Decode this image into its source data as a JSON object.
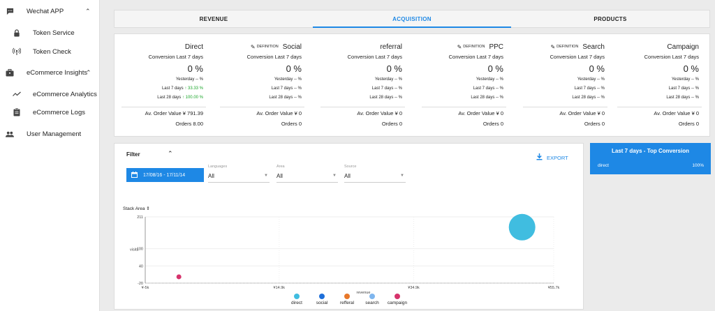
{
  "sidebar": {
    "items": [
      {
        "label": "Wechat APP",
        "icon": "chat-icon",
        "chevron": "⌃"
      },
      {
        "label": "Token Service",
        "icon": "lock-icon"
      },
      {
        "label": "Token Check",
        "icon": "antenna-icon"
      },
      {
        "label": "eCommerce Insights",
        "icon": "briefcase-icon",
        "chevron": "⌃"
      },
      {
        "label": "eCommerce Analytics",
        "icon": "trend-icon"
      },
      {
        "label": "eCommerce Logs",
        "icon": "clipboard-icon"
      },
      {
        "label": "User Management",
        "icon": "people-icon"
      }
    ]
  },
  "tabs": [
    {
      "label": "REVENUE",
      "active": false
    },
    {
      "label": "ACQUISITION",
      "active": true
    },
    {
      "label": "PRODUCTS",
      "active": false
    }
  ],
  "kpis": [
    {
      "name": "Direct",
      "definition": "",
      "conversion_label": "Conversion Last 7 days",
      "value": "0 %",
      "yesterday": "Yesterday -- %",
      "last7_text": "Last 7 days ",
      "last7_value": "↑ 33.33 %",
      "last28_text": "Last 28 days ",
      "last28_value": "↑ 100.00 %",
      "aov": "Av. Order Value ¥ 791.39",
      "orders": "Orders 8.00"
    },
    {
      "name": "Social",
      "definition": "DEFINITION",
      "conversion_label": "Conversion Last 7 days",
      "value": "0 %",
      "yesterday": "Yesterday -- %",
      "last7_text": "Last 7 days -- %",
      "last7_value": "",
      "last28_text": "Last 28 days -- %",
      "last28_value": "",
      "aov": "Av. Order Value ¥ 0",
      "orders": "Orders 0"
    },
    {
      "name": "referral",
      "definition": "",
      "conversion_label": "Conversion Last 7 days",
      "value": "0 %",
      "yesterday": "Yesterday -- %",
      "last7_text": "Last 7 days -- %",
      "last7_value": "",
      "last28_text": "Last 28 days -- %",
      "last28_value": "",
      "aov": "Av. Order Value ¥ 0",
      "orders": "Orders 0"
    },
    {
      "name": "PPC",
      "definition": "DEFINITION",
      "conversion_label": "Conversion Last 7 days",
      "value": "0 %",
      "yesterday": "Yesterday -- %",
      "last7_text": "Last 7 days -- %",
      "last7_value": "",
      "last28_text": "Last 28 days -- %",
      "last28_value": "",
      "aov": "Av. Order Value ¥ 0",
      "orders": "Orders 0"
    },
    {
      "name": "Search",
      "definition": "DEFINITION",
      "conversion_label": "Conversion Last 7 days",
      "value": "0 %",
      "yesterday": "Yesterday -- %",
      "last7_text": "Last 7 days -- %",
      "last7_value": "",
      "last28_text": "Last 28 days -- %",
      "last28_value": "",
      "aov": "Av. Order Value ¥ 0",
      "orders": "Orders 0"
    },
    {
      "name": "Campaign",
      "definition": "",
      "conversion_label": "Conversion Last 7 days",
      "value": "0 %",
      "yesterday": "Yesterday -- %",
      "last7_text": "Last 7 days -- %",
      "last7_value": "",
      "last28_text": "Last 28 days -- %",
      "last28_value": "",
      "aov": "Av. Order Value ¥ 0",
      "orders": "Orders 0"
    }
  ],
  "filter": {
    "title": "Filter",
    "export_label": "EXPORT",
    "date_range": "17/08/16 - 17/11/14",
    "selects": [
      {
        "label": "Languages",
        "value": "All"
      },
      {
        "label": "Area",
        "value": "All"
      },
      {
        "label": "Source",
        "value": "All"
      }
    ],
    "chart_mode_label": "Stack Area ⇕"
  },
  "top_conversion": {
    "title": "Last 7 days - Top Conversion",
    "rows": [
      {
        "name": "direct",
        "value": "100%"
      }
    ]
  },
  "chart_data": {
    "type": "scatter",
    "xlabel": "revenue",
    "ylabel": "visits",
    "x_ticks": [
      "¥-5k",
      "¥14.9k",
      "¥34.9k",
      "¥55.7k"
    ],
    "y_ticks": [
      "211",
      "100",
      "40",
      "-20"
    ],
    "xlim": [
      -5000,
      55700
    ],
    "ylim": [
      -20,
      211
    ],
    "points": [
      {
        "series": "direct",
        "x": 51000,
        "y": 175,
        "size": "large",
        "color": "#40bde0"
      },
      {
        "series": "campaign",
        "x": 0,
        "y": 2,
        "size": "small",
        "color": "#d6336c"
      }
    ],
    "legend": [
      {
        "name": "direct",
        "color": "#40bde0"
      },
      {
        "name": "social",
        "color": "#1e6fd9"
      },
      {
        "name": "refferal",
        "color": "#e8782a"
      },
      {
        "name": "search",
        "color": "#7fb6ee"
      },
      {
        "name": "campaign",
        "color": "#d6336c"
      }
    ]
  }
}
